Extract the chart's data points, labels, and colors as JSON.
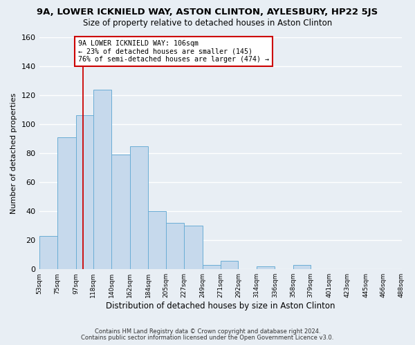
{
  "title": "9A, LOWER ICKNIELD WAY, ASTON CLINTON, AYLESBURY, HP22 5JS",
  "subtitle": "Size of property relative to detached houses in Aston Clinton",
  "xlabel": "Distribution of detached houses by size in Aston Clinton",
  "ylabel": "Number of detached properties",
  "bar_edges": [
    53,
    75,
    97,
    118,
    140,
    162,
    184,
    205,
    227,
    249,
    271,
    292,
    314,
    336,
    358,
    379,
    401,
    423,
    445,
    466,
    488
  ],
  "bar_heights": [
    23,
    91,
    106,
    124,
    79,
    85,
    40,
    32,
    30,
    3,
    6,
    0,
    2,
    0,
    3,
    0,
    0,
    0,
    0,
    0
  ],
  "bar_color": "#c6d9ec",
  "bar_edge_color": "#6aadd5",
  "ylim": [
    0,
    160
  ],
  "yticks": [
    0,
    20,
    40,
    60,
    80,
    100,
    120,
    140,
    160
  ],
  "property_line_x": 106,
  "property_line_color": "#cc0000",
  "annotation_line1": "9A LOWER ICKNIELD WAY: 106sqm",
  "annotation_line2": "← 23% of detached houses are smaller (145)",
  "annotation_line3": "76% of semi-detached houses are larger (474) →",
  "annotation_box_color": "#ffffff",
  "annotation_box_edge": "#cc0000",
  "footer_line1": "Contains HM Land Registry data © Crown copyright and database right 2024.",
  "footer_line2": "Contains public sector information licensed under the Open Government Licence v3.0.",
  "background_color": "#e8eef4",
  "grid_color": "#ffffff"
}
